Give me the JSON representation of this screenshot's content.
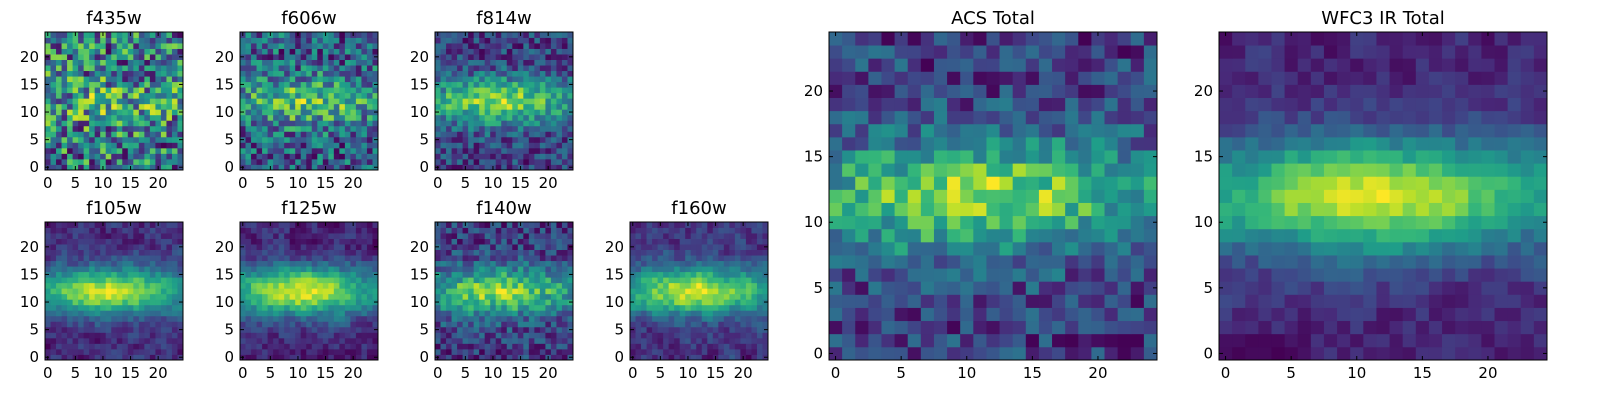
{
  "chart_data": [
    {
      "type": "heatmap",
      "title": "f435w",
      "n": 25,
      "noise": 0.55,
      "blob": 0.15,
      "smooth": 0,
      "seed": 11,
      "xticks": [
        0,
        5,
        10,
        15,
        20
      ],
      "yticks": [
        0,
        5,
        10,
        15,
        20
      ],
      "xlim": [
        0,
        25
      ],
      "ylim": [
        0,
        25
      ]
    },
    {
      "type": "heatmap",
      "title": "f606w",
      "n": 25,
      "noise": 0.45,
      "blob": 0.35,
      "smooth": 0,
      "seed": 23,
      "xticks": [
        0,
        5,
        10,
        15,
        20
      ],
      "yticks": [
        0,
        5,
        10,
        15,
        20
      ],
      "xlim": [
        0,
        25
      ],
      "ylim": [
        0,
        25
      ]
    },
    {
      "type": "heatmap",
      "title": "f814w",
      "n": 25,
      "noise": 0.35,
      "blob": 0.6,
      "smooth": 0,
      "seed": 37,
      "xticks": [
        0,
        5,
        10,
        15,
        20
      ],
      "yticks": [
        0,
        5,
        10,
        15,
        20
      ],
      "xlim": [
        0,
        25
      ],
      "ylim": [
        0,
        25
      ]
    },
    {
      "type": "heatmap",
      "title": "f105w",
      "n": 25,
      "noise": 0.3,
      "blob": 0.75,
      "smooth": 1,
      "seed": 41,
      "xticks": [
        0,
        5,
        10,
        15,
        20
      ],
      "yticks": [
        0,
        5,
        10,
        15,
        20
      ],
      "xlim": [
        0,
        25
      ],
      "ylim": [
        0,
        25
      ]
    },
    {
      "type": "heatmap",
      "title": "f125w",
      "n": 25,
      "noise": 0.3,
      "blob": 0.75,
      "smooth": 1,
      "seed": 53,
      "xticks": [
        0,
        5,
        10,
        15,
        20
      ],
      "yticks": [
        0,
        5,
        10,
        15,
        20
      ],
      "xlim": [
        0,
        25
      ],
      "ylim": [
        0,
        25
      ]
    },
    {
      "type": "heatmap",
      "title": "f140w",
      "n": 25,
      "noise": 0.35,
      "blob": 0.7,
      "smooth": 0,
      "seed": 67,
      "xticks": [
        0,
        5,
        10,
        15,
        20
      ],
      "yticks": [
        0,
        5,
        10,
        15,
        20
      ],
      "xlim": [
        0,
        25
      ],
      "ylim": [
        0,
        25
      ]
    },
    {
      "type": "heatmap",
      "title": "f160w",
      "n": 25,
      "noise": 0.3,
      "blob": 0.7,
      "smooth": 1,
      "seed": 79,
      "xticks": [
        0,
        5,
        10,
        15,
        20
      ],
      "yticks": [
        0,
        5,
        10,
        15,
        20
      ],
      "xlim": [
        0,
        25
      ],
      "ylim": [
        0,
        25
      ]
    },
    {
      "type": "heatmap",
      "title": "ACS Total",
      "n": 25,
      "noise": 0.32,
      "blob": 0.6,
      "smooth": 0,
      "seed": 83,
      "xticks": [
        0,
        5,
        10,
        15,
        20
      ],
      "yticks": [
        0,
        5,
        10,
        15,
        20
      ],
      "xlim": [
        0,
        25
      ],
      "ylim": [
        0,
        25
      ]
    },
    {
      "type": "heatmap",
      "title": "WFC3 IR Total",
      "n": 25,
      "noise": 0.22,
      "blob": 0.75,
      "smooth": 1,
      "seed": 97,
      "xticks": [
        0,
        5,
        10,
        15,
        20
      ],
      "yticks": [
        0,
        5,
        10,
        15,
        20
      ],
      "xlim": [
        0,
        25
      ],
      "ylim": [
        0,
        25
      ]
    }
  ],
  "colormap": [
    "#440154",
    "#482878",
    "#3e4989",
    "#31688e",
    "#26828e",
    "#1f9e89",
    "#35b779",
    "#6ece58",
    "#b5de2b",
    "#fde725"
  ]
}
